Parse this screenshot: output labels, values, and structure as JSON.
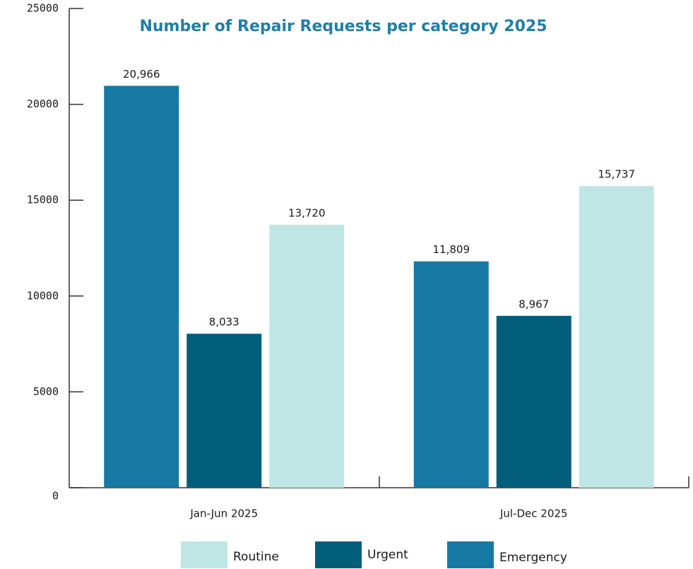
{
  "chart_data": {
    "type": "bar",
    "title": "Number of Repair Requests per category 2025",
    "categories": [
      "Jan-Jun 2025",
      "Jul-Dec 2025"
    ],
    "series": [
      {
        "name": "Emergency",
        "color": "#1679a3",
        "values": [
          20966,
          11809
        ],
        "value_labels": [
          "20,966",
          "11,809"
        ]
      },
      {
        "name": "Urgent",
        "color": "#035e7b",
        "values": [
          8033,
          8967
        ],
        "value_labels": [
          "8,033",
          "8,967"
        ]
      },
      {
        "name": "Routine",
        "color": "#bfe5e5",
        "values": [
          13720,
          15737
        ],
        "value_labels": [
          "13,720",
          "15,737"
        ]
      }
    ],
    "ylim": [
      0,
      25000
    ],
    "yticks": [
      0,
      5000,
      10000,
      15000,
      20000,
      25000
    ],
    "grid": false
  }
}
